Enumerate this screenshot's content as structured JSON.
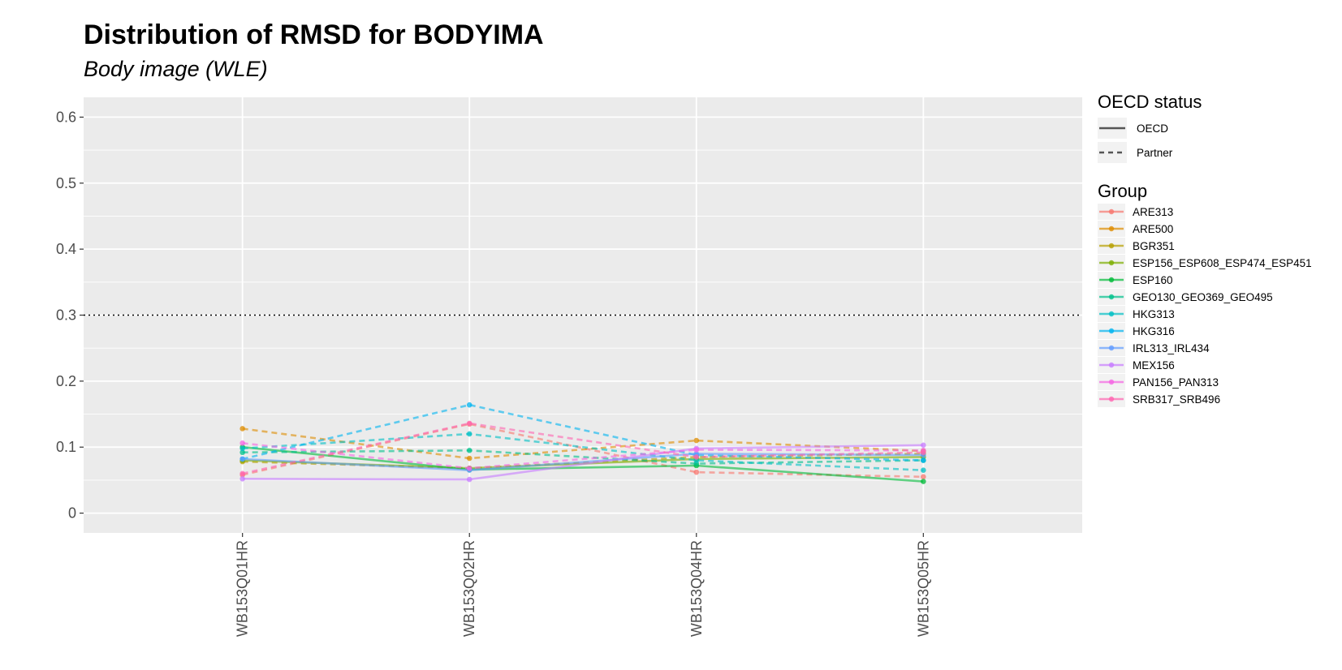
{
  "title": "Distribution of RMSD for BODYIMA",
  "subtitle": "Body image (WLE)",
  "chart_data": {
    "type": "line",
    "title": "Distribution of RMSD for BODYIMA",
    "subtitle": "Body image (WLE)",
    "xlabel": "",
    "ylabel": "",
    "categories": [
      "WB153Q01HR",
      "WB153Q02HR",
      "WB153Q04HR",
      "WB153Q05HR"
    ],
    "ylim": [
      -0.03,
      0.63
    ],
    "yticks": [
      0,
      0.1,
      0.2,
      0.3,
      0.4,
      0.5,
      0.6
    ],
    "ytick_labels": [
      "0",
      "0.1",
      "0.2",
      "0.3",
      "0.4",
      "0.5",
      "0.6"
    ],
    "reference_line": {
      "y": 0.3,
      "style": "dotted",
      "color": "#000000"
    },
    "grid": true,
    "background": "#ebebeb",
    "legend_position": "right",
    "linetype_legend": {
      "title": "OECD status",
      "items": [
        {
          "label": "OECD",
          "dash": "solid"
        },
        {
          "label": "Partner",
          "dash": "dashed"
        }
      ]
    },
    "color_legend_title": "Group",
    "series": [
      {
        "name": "ARE313",
        "color": "#F8766D",
        "status": "Partner",
        "values": [
          0.058,
          0.135,
          0.062,
          0.055
        ]
      },
      {
        "name": "ARE500",
        "color": "#DE8C00",
        "status": "Partner",
        "values": [
          0.128,
          0.083,
          0.11,
          0.094
        ]
      },
      {
        "name": "BGR351",
        "color": "#B79F00",
        "status": "Partner",
        "values": [
          0.078,
          0.068,
          0.085,
          0.09
        ]
      },
      {
        "name": "ESP156_ESP608_ESP474_ESP451",
        "color": "#7CAE00",
        "status": "OECD",
        "values": [
          0.08,
          0.068,
          0.082,
          0.085
        ]
      },
      {
        "name": "ESP160",
        "color": "#00BA38",
        "status": "OECD",
        "values": [
          0.1,
          0.066,
          0.072,
          0.048
        ]
      },
      {
        "name": "GEO130_GEO369_GEO495",
        "color": "#00C08B",
        "status": "Partner",
        "values": [
          0.092,
          0.095,
          0.075,
          0.08
        ]
      },
      {
        "name": "HKG313",
        "color": "#00BFC4",
        "status": "Partner",
        "values": [
          0.098,
          0.12,
          0.08,
          0.065
        ]
      },
      {
        "name": "HKG316",
        "color": "#00B4F0",
        "status": "Partner",
        "values": [
          0.082,
          0.164,
          0.088,
          0.08
        ]
      },
      {
        "name": "IRL313_IRL434",
        "color": "#619CFF",
        "status": "OECD",
        "values": [
          0.082,
          0.065,
          0.09,
          0.088
        ]
      },
      {
        "name": "MEX156",
        "color": "#C77CFF",
        "status": "OECD",
        "values": [
          0.052,
          0.051,
          0.098,
          0.103
        ]
      },
      {
        "name": "PAN156_PAN313",
        "color": "#F564E3",
        "status": "Partner",
        "values": [
          0.106,
          0.068,
          0.096,
          0.095
        ]
      },
      {
        "name": "SRB317_SRB496",
        "color": "#FF64B0",
        "status": "Partner",
        "values": [
          0.06,
          0.136,
          0.085,
          0.092
        ]
      }
    ]
  }
}
